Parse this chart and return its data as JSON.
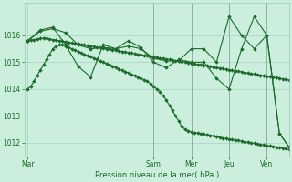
{
  "background_color": "#cceedd",
  "grid_color": "#99ccbb",
  "line_color": "#1a6b2a",
  "marker_color": "#1a6b2a",
  "xlabel": "Pression niveau de la mer( hPa )",
  "xlabel_color": "#1a6b2a",
  "tick_color": "#1a6b2a",
  "ylim": [
    1011.5,
    1017.2
  ],
  "yticks": [
    1012,
    1013,
    1014,
    1015,
    1016
  ],
  "day_labels": [
    "Mar",
    "Sam",
    "Mer",
    "Jeu",
    "Ven"
  ],
  "day_x": [
    0,
    40,
    52,
    64,
    76
  ],
  "n_points": 84,
  "figsize": [
    3.2,
    2.0
  ],
  "dpi": 100,
  "line1_y": [
    1014.0,
    1014.1,
    1014.3,
    1014.5,
    1014.7,
    1014.9,
    1015.1,
    1015.3,
    1015.5,
    1015.6,
    1015.65,
    1015.65,
    1015.6,
    1015.55,
    1015.5,
    1015.45,
    1015.4,
    1015.35,
    1015.3,
    1015.25,
    1015.2,
    1015.15,
    1015.1,
    1015.05,
    1015.0,
    1014.95,
    1014.9,
    1014.85,
    1014.8,
    1014.75,
    1014.7,
    1014.65,
    1014.6,
    1014.55,
    1014.5,
    1014.45,
    1014.4,
    1014.35,
    1014.3,
    1014.2,
    1014.1,
    1014.0,
    1013.9,
    1013.75,
    1013.6,
    1013.4,
    1013.2,
    1013.0,
    1012.8,
    1012.6,
    1012.5,
    1012.45,
    1012.4,
    1012.38,
    1012.36,
    1012.34,
    1012.32,
    1012.3,
    1012.28,
    1012.25,
    1012.22,
    1012.2,
    1012.18,
    1012.16,
    1012.14,
    1012.12,
    1012.1,
    1012.08,
    1012.06,
    1012.04,
    1012.02,
    1012.0,
    1011.98,
    1011.96,
    1011.94,
    1011.92,
    1011.9,
    1011.88,
    1011.86,
    1011.84,
    1011.82,
    1011.8,
    1011.78,
    1011.76
  ],
  "line2_y": [
    1015.8,
    1015.82,
    1015.84,
    1015.86,
    1015.88,
    1015.9,
    1015.88,
    1015.86,
    1015.84,
    1015.82,
    1015.8,
    1015.78,
    1015.76,
    1015.74,
    1015.72,
    1015.7,
    1015.68,
    1015.66,
    1015.64,
    1015.62,
    1015.6,
    1015.58,
    1015.56,
    1015.54,
    1015.52,
    1015.5,
    1015.48,
    1015.46,
    1015.44,
    1015.42,
    1015.4,
    1015.38,
    1015.36,
    1015.34,
    1015.32,
    1015.3,
    1015.28,
    1015.26,
    1015.24,
    1015.22,
    1015.2,
    1015.18,
    1015.16,
    1015.14,
    1015.12,
    1015.1,
    1015.08,
    1015.06,
    1015.04,
    1015.02,
    1015.0,
    1014.98,
    1014.96,
    1014.94,
    1014.92,
    1014.9,
    1014.88,
    1014.86,
    1014.84,
    1014.82,
    1014.8,
    1014.78,
    1014.76,
    1014.74,
    1014.72,
    1014.7,
    1014.68,
    1014.66,
    1014.64,
    1014.62,
    1014.6,
    1014.58,
    1014.56,
    1014.54,
    1014.52,
    1014.5,
    1014.48,
    1014.46,
    1014.44,
    1014.42,
    1014.4,
    1014.38,
    1014.36,
    1014.34
  ],
  "line3_x": [
    0,
    4,
    8,
    12,
    16,
    20,
    24,
    28,
    32,
    36,
    40,
    44,
    48,
    52,
    56,
    60,
    64,
    68,
    72,
    76,
    80,
    83
  ],
  "line3_y": [
    1015.8,
    1016.15,
    1016.25,
    1016.1,
    1015.65,
    1015.5,
    1015.55,
    1015.5,
    1015.6,
    1015.5,
    1015.15,
    1015.05,
    1015.05,
    1015.5,
    1015.5,
    1015.0,
    1016.7,
    1016.0,
    1015.5,
    1016.0,
    1012.35,
    1011.85
  ],
  "line4_x": [
    0,
    4,
    8,
    12,
    16,
    20,
    24,
    28,
    32,
    36,
    40,
    44,
    48,
    52,
    56,
    60,
    64,
    68,
    72,
    76,
    80,
    83
  ],
  "line4_y": [
    1015.8,
    1016.2,
    1016.3,
    1015.65,
    1014.85,
    1014.45,
    1015.65,
    1015.5,
    1015.8,
    1015.55,
    1015.0,
    1014.8,
    1015.1,
    1015.0,
    1015.0,
    1014.4,
    1014.0,
    1015.5,
    1016.7,
    1016.0,
    1012.35,
    1011.85
  ]
}
